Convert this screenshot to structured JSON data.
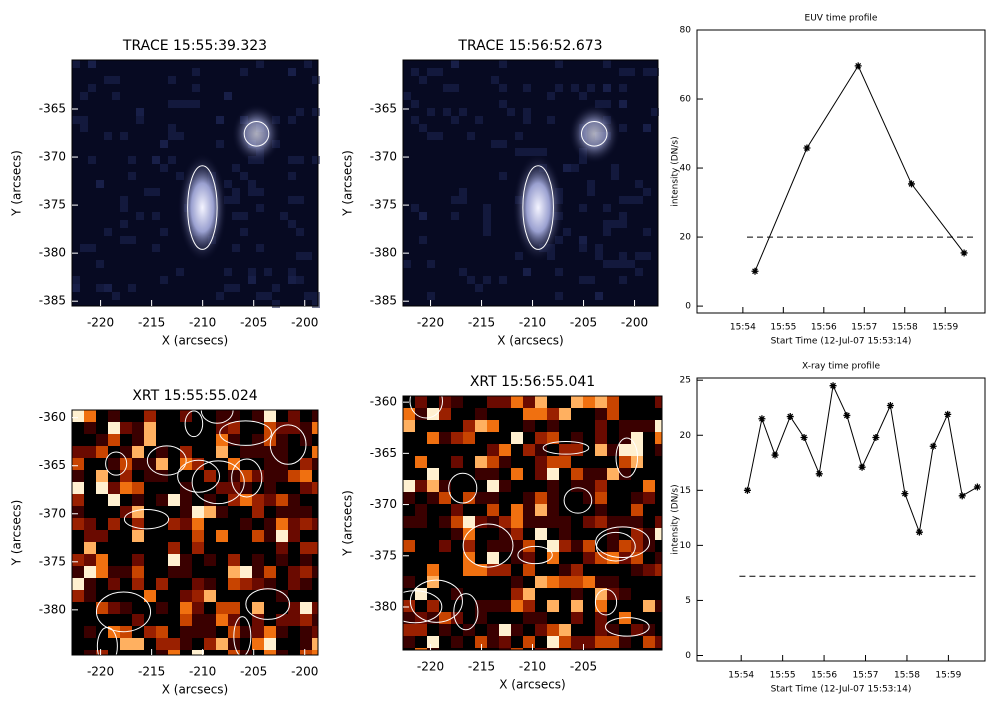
{
  "chart_data": [
    {
      "type": "image",
      "title": "TRACE 15:55:39.323",
      "xlabel": "X (arcsecs)",
      "ylabel": "Y (arcsecs)",
      "colormap": "blue",
      "xlim": [
        -222.8,
        -198.7
      ],
      "xticks": [
        -220,
        -215,
        -210,
        -205,
        -200
      ],
      "ylim": [
        -385.5,
        -359.9
      ],
      "yticks": [
        -365,
        -370,
        -375,
        -380,
        -385
      ]
    },
    {
      "type": "image",
      "title": "TRACE 15:56:52.673",
      "xlabel": "X (arcsecs)",
      "ylabel": "Y (arcsecs)",
      "colormap": "blue",
      "xlim": [
        -222.7,
        -197.7
      ],
      "xticks": [
        -220,
        -215,
        -210,
        -205,
        -200
      ],
      "ylim": [
        -385.5,
        -359.9
      ],
      "yticks": [
        -365,
        -370,
        -375,
        -380,
        -385
      ]
    },
    {
      "type": "line",
      "title": "EUV time profile",
      "xlabel": "Start Time (12-Jul-07 15:53:14)",
      "ylabel": "intensity (DN/s)",
      "x": [
        64,
        141,
        217,
        296,
        374
      ],
      "series": [
        {
          "color": "#000000",
          "values": [
            10.1,
            45.8,
            69.6,
            35.4,
            15.4
          ]
        }
      ],
      "reference_line": 20,
      "xlim": [
        -22,
        405
      ],
      "xticks": [
        {
          "value": 46,
          "label": "15:54"
        },
        {
          "value": 106,
          "label": "15:55"
        },
        {
          "value": 166,
          "label": "15:56"
        },
        {
          "value": 226,
          "label": "15:57"
        },
        {
          "value": 286,
          "label": "15:58"
        },
        {
          "value": 346,
          "label": "15:59"
        }
      ],
      "ylim": [
        -2,
        80
      ],
      "yticks": [
        0,
        20,
        40,
        60,
        80
      ]
    },
    {
      "type": "image",
      "title": "XRT 15:55:55.024",
      "xlabel": "X (arcsecs)",
      "ylabel": "Y (arcsecs)",
      "colormap": "red",
      "xlim": [
        -222.8,
        -198.7
      ],
      "xticks": [
        -220,
        -215,
        -210,
        -205,
        -200
      ],
      "ylim": [
        -384.7,
        -359.2
      ],
      "yticks": [
        -360,
        -365,
        -370,
        -375,
        -380
      ]
    },
    {
      "type": "image",
      "title": "XRT 15:56:55.041",
      "xlabel": "X (arcsecs)",
      "ylabel": "Y (arcsecs)",
      "colormap": "red",
      "xlim": [
        -222.7,
        -197.3
      ],
      "xticks": [
        -220,
        -215,
        -210,
        -205
      ],
      "ylim": [
        -384.2,
        -359.4
      ],
      "yticks": [
        -360,
        -365,
        -370,
        -375,
        -380
      ]
    },
    {
      "type": "line",
      "title": "X-ray time profile",
      "xlabel": "Start Time (12-Jul-07 15:53:14)",
      "ylabel": "intensity (DN/s)",
      "x": [
        55,
        76,
        95,
        117,
        137,
        159,
        179,
        199,
        221,
        241,
        262,
        283,
        304,
        324,
        345,
        366,
        388
      ],
      "series": [
        {
          "color": "#000000",
          "values": [
            15.0,
            21.5,
            18.2,
            21.7,
            19.8,
            16.5,
            24.5,
            21.8,
            17.1,
            19.8,
            22.7,
            14.7,
            11.2,
            19.0,
            21.9,
            14.5,
            15.3
          ]
        }
      ],
      "reference_line": 7.2,
      "xlim": [
        -18,
        399
      ],
      "xticks": [
        {
          "value": 46,
          "label": "15:54"
        },
        {
          "value": 106,
          "label": "15:55"
        },
        {
          "value": 166,
          "label": "15:56"
        },
        {
          "value": 226,
          "label": "15:57"
        },
        {
          "value": 286,
          "label": "15:58"
        },
        {
          "value": 346,
          "label": "15:59"
        }
      ],
      "ylim": [
        -0.5,
        25.2
      ],
      "yticks": [
        0,
        5,
        10,
        15,
        20,
        25
      ]
    }
  ]
}
